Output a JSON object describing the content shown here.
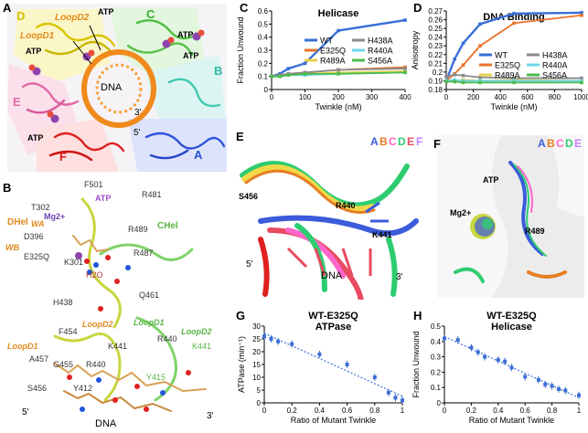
{
  "panel_labels": {
    "A": "A",
    "B": "B",
    "C": "C",
    "D": "D",
    "E": "E",
    "F": "F",
    "G": "G",
    "H": "H"
  },
  "structure_a": {
    "subunit_labels": [
      "D",
      "C",
      "E",
      "B",
      "F",
      "A"
    ],
    "loop_labels": [
      "LoopD2",
      "LoopD1"
    ],
    "atp_labels": [
      "ATP",
      "ATP",
      "ATP",
      "ATP",
      "ATP"
    ],
    "dna_label": "DNA",
    "end_labels": [
      "3'",
      "5'"
    ]
  },
  "structure_b": {
    "residue_labels": [
      "F501",
      "R481",
      "ATP",
      "Mg2+",
      "D396",
      "R489",
      "T302",
      "K301",
      "E325Q",
      "R487",
      "H2O",
      "H438",
      "Q461",
      "F454",
      "LoopD2",
      "LoopD1",
      "LoopD2",
      "R440",
      "K441",
      "K441",
      "A457",
      "G455",
      "R440",
      "S456",
      "Y412",
      "Y415",
      "WA",
      "WB",
      "LoopD1"
    ],
    "domain_labels": [
      "DHel",
      "CHel"
    ],
    "dna_label": "DNA",
    "end_labels": [
      "5'",
      "3'"
    ]
  },
  "structure_e": {
    "legend_letters": [
      "A",
      "B",
      "C",
      "D",
      "E",
      "F"
    ],
    "legend_colors": [
      "#3b5bdb",
      "#e67e22",
      "#ff66cc",
      "#2ecc71",
      "#e84a5f",
      "#c77dff"
    ],
    "residue_labels": [
      "S456",
      "R440",
      "K441"
    ],
    "dna_label": "DNA",
    "end_labels": [
      "5'",
      "3'"
    ]
  },
  "structure_f": {
    "legend_letters": [
      "A",
      "B",
      "C",
      "D",
      "E"
    ],
    "legend_colors": [
      "#3b5bdb",
      "#e67e22",
      "#ff66cc",
      "#2ecc71",
      "#c77dff"
    ],
    "residue_labels": [
      "ATP",
      "Mg2+",
      "R489"
    ]
  },
  "chart_data": [
    {
      "id": "C",
      "type": "line",
      "title": "Helicase",
      "xlabel": "Twinkle (nM)",
      "ylabel": "Fraction Unwound",
      "xlim": [
        0,
        400
      ],
      "ylim": [
        0,
        0.6
      ],
      "xticks": [
        0,
        100,
        200,
        300,
        400
      ],
      "yticks": [
        0,
        0.1,
        0.2,
        0.3,
        0.4,
        0.5,
        0.6
      ],
      "legend_position": "center-right",
      "series": [
        {
          "name": "WT",
          "color": "#3a6fd8",
          "x": [
            0,
            25,
            50,
            100,
            200,
            400
          ],
          "y": [
            0.1,
            0.12,
            0.16,
            0.2,
            0.45,
            0.53
          ]
        },
        {
          "name": "E325Q",
          "color": "#e8732a",
          "x": [
            0,
            25,
            50,
            100,
            200,
            400
          ],
          "y": [
            0.1,
            0.11,
            0.12,
            0.13,
            0.15,
            0.17
          ]
        },
        {
          "name": "R489A",
          "color": "#e8d24a",
          "x": [
            0,
            25,
            50,
            100,
            200,
            400
          ],
          "y": [
            0.1,
            0.1,
            0.11,
            0.12,
            0.13,
            0.14
          ]
        },
        {
          "name": "H438A",
          "color": "#8a8a8a",
          "x": [
            0,
            25,
            50,
            100,
            200,
            400
          ],
          "y": [
            0.1,
            0.11,
            0.12,
            0.13,
            0.15,
            0.16
          ]
        },
        {
          "name": "R440A",
          "color": "#6fd6e8",
          "x": [
            0,
            25,
            50,
            100,
            200,
            400
          ],
          "y": [
            0.1,
            0.1,
            0.11,
            0.11,
            0.12,
            0.13
          ]
        },
        {
          "name": "S456A",
          "color": "#4cbb4c",
          "x": [
            0,
            25,
            50,
            100,
            200,
            400
          ],
          "y": [
            0.1,
            0.1,
            0.11,
            0.12,
            0.12,
            0.13
          ]
        }
      ]
    },
    {
      "id": "D",
      "type": "line",
      "title": "DNA Binding",
      "xlabel": "Twinkle (nM)",
      "ylabel": "Anisotropy",
      "xlim": [
        0,
        1000
      ],
      "ylim": [
        0.18,
        0.27
      ],
      "xticks": [
        0,
        200,
        400,
        600,
        800,
        1000
      ],
      "yticks": [
        0.18,
        0.19,
        0.2,
        0.21,
        0.22,
        0.23,
        0.24,
        0.25,
        0.26,
        0.27
      ],
      "legend_position": "center-right",
      "series": [
        {
          "name": "WT",
          "color": "#3a6fd8",
          "x": [
            0,
            62,
            125,
            250,
            500,
            1000
          ],
          "y": [
            0.19,
            0.215,
            0.233,
            0.255,
            0.267,
            0.268
          ]
        },
        {
          "name": "E325Q",
          "color": "#e8732a",
          "x": [
            0,
            62,
            125,
            250,
            500,
            1000
          ],
          "y": [
            0.19,
            0.198,
            0.208,
            0.23,
            0.256,
            0.265
          ]
        },
        {
          "name": "R489A",
          "color": "#e8d24a",
          "x": [
            0,
            62,
            125,
            250,
            500,
            1000
          ],
          "y": [
            0.19,
            0.19,
            0.191,
            0.19,
            0.191,
            0.19
          ]
        },
        {
          "name": "H438A",
          "color": "#8a8a8a",
          "x": [
            0,
            62,
            125,
            250,
            500,
            1000
          ],
          "y": [
            0.195,
            0.197,
            0.196,
            0.194,
            0.193,
            0.193
          ]
        },
        {
          "name": "R440A",
          "color": "#6fd6e8",
          "x": [
            0,
            62,
            125,
            250,
            500,
            1000
          ],
          "y": [
            0.19,
            0.191,
            0.19,
            0.19,
            0.19,
            0.19
          ]
        },
        {
          "name": "S456A",
          "color": "#4cbb4c",
          "x": [
            0,
            62,
            125,
            250,
            500,
            1000
          ],
          "y": [
            0.189,
            0.189,
            0.188,
            0.188,
            0.188,
            0.188
          ]
        }
      ]
    },
    {
      "id": "G",
      "type": "scatter",
      "title": "WT-E325Q",
      "subtitle": "ATPase",
      "xlabel": "Ratio of Mutant Twinkle",
      "ylabel": "ATPase (min⁻¹)",
      "xlim": [
        0,
        1
      ],
      "ylim": [
        0,
        30
      ],
      "xticks": [
        0,
        0.2,
        0.4,
        0.6,
        0.8,
        1
      ],
      "yticks": [
        0,
        5,
        10,
        15,
        20,
        25,
        30
      ],
      "grid": false,
      "trendline": true,
      "x": [
        0,
        0.05,
        0.1,
        0.2,
        0.4,
        0.6,
        0.8,
        0.9,
        0.95,
        1
      ],
      "y": [
        26,
        25,
        24,
        23,
        19,
        15,
        10,
        4,
        2,
        1
      ]
    },
    {
      "id": "H",
      "type": "scatter",
      "title": "WT-E325Q",
      "subtitle": "Helicase",
      "xlabel": "Ratio of Mutant Twinkle",
      "ylabel": "Fraction Unwound",
      "xlim": [
        0,
        1
      ],
      "ylim": [
        0,
        0.5
      ],
      "xticks": [
        0,
        0.2,
        0.4,
        0.6,
        0.8,
        1
      ],
      "yticks": [
        0,
        0.1,
        0.2,
        0.3,
        0.4,
        0.5
      ],
      "grid": false,
      "trendline": true,
      "x": [
        0,
        0.1,
        0.2,
        0.25,
        0.3,
        0.4,
        0.45,
        0.5,
        0.6,
        0.7,
        0.75,
        0.8,
        0.85,
        0.9,
        1
      ],
      "y": [
        0.42,
        0.41,
        0.36,
        0.33,
        0.3,
        0.28,
        0.27,
        0.23,
        0.17,
        0.15,
        0.12,
        0.11,
        0.09,
        0.08,
        0.05
      ]
    }
  ]
}
